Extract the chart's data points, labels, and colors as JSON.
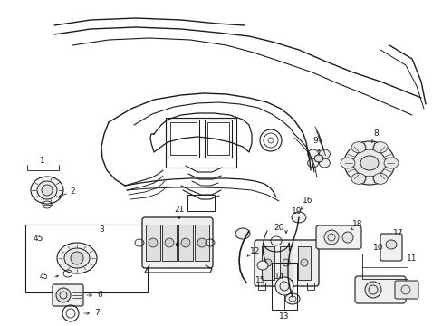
{
  "bg": "#ffffff",
  "lc": "#1a1a1a",
  "figw": 4.89,
  "figh": 3.6,
  "dpi": 100
}
